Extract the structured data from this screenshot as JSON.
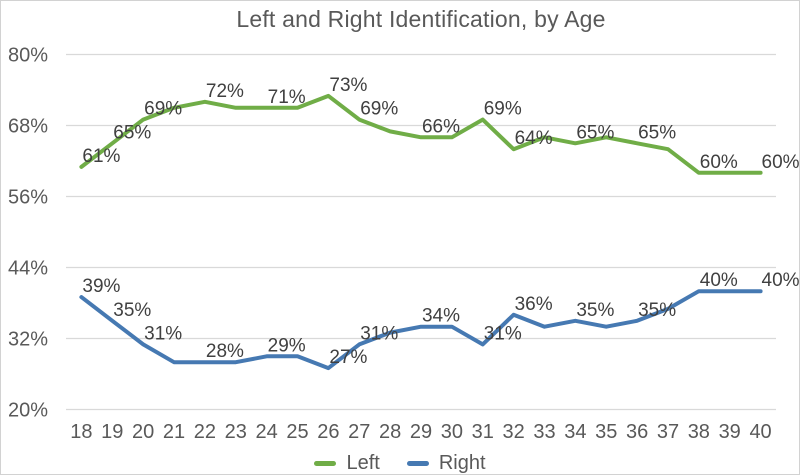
{
  "chart": {
    "title": "Left and Right Identification, by Age"
  },
  "legend": {
    "left_label": "Left",
    "right_label": "Right"
  },
  "colors": {
    "left_series": "#70AD47",
    "right_series": "#4679B2",
    "gridline": "#D9D9D9",
    "axis_text": "#595959",
    "data_label_text": "#404040",
    "title_text": "#595959"
  },
  "chart_data": {
    "type": "line",
    "title": "Left and Right Identification, by Age",
    "x": [
      18,
      19,
      20,
      21,
      22,
      23,
      24,
      25,
      26,
      27,
      28,
      29,
      30,
      31,
      32,
      33,
      34,
      35,
      36,
      37,
      38,
      39,
      40
    ],
    "series": [
      {
        "name": "Left",
        "color": "#70AD47",
        "values": [
          61,
          65,
          69,
          71,
          72,
          71,
          71,
          71,
          73,
          69,
          67,
          66,
          66,
          69,
          64,
          66,
          65,
          66,
          65,
          64,
          60,
          60,
          60
        ]
      },
      {
        "name": "Right",
        "color": "#4679B2",
        "values": [
          39,
          35,
          31,
          28,
          28,
          28,
          29,
          29,
          27,
          31,
          33,
          34,
          34,
          31,
          36,
          34,
          35,
          34,
          35,
          37,
          40,
          40,
          40
        ]
      }
    ],
    "labeled_x": [
      18,
      19,
      20,
      22,
      24,
      26,
      27,
      29,
      31,
      32,
      34,
      36,
      38,
      40
    ],
    "label_format": "percent",
    "y_ticks": [
      80,
      68,
      56,
      44,
      32,
      20
    ],
    "y_tick_labels": [
      "80%",
      "68%",
      "56%",
      "44%",
      "32%",
      "20%"
    ],
    "ylim": [
      20,
      80
    ],
    "grid": "horizontal-only",
    "legend_position": "bottom-center"
  }
}
